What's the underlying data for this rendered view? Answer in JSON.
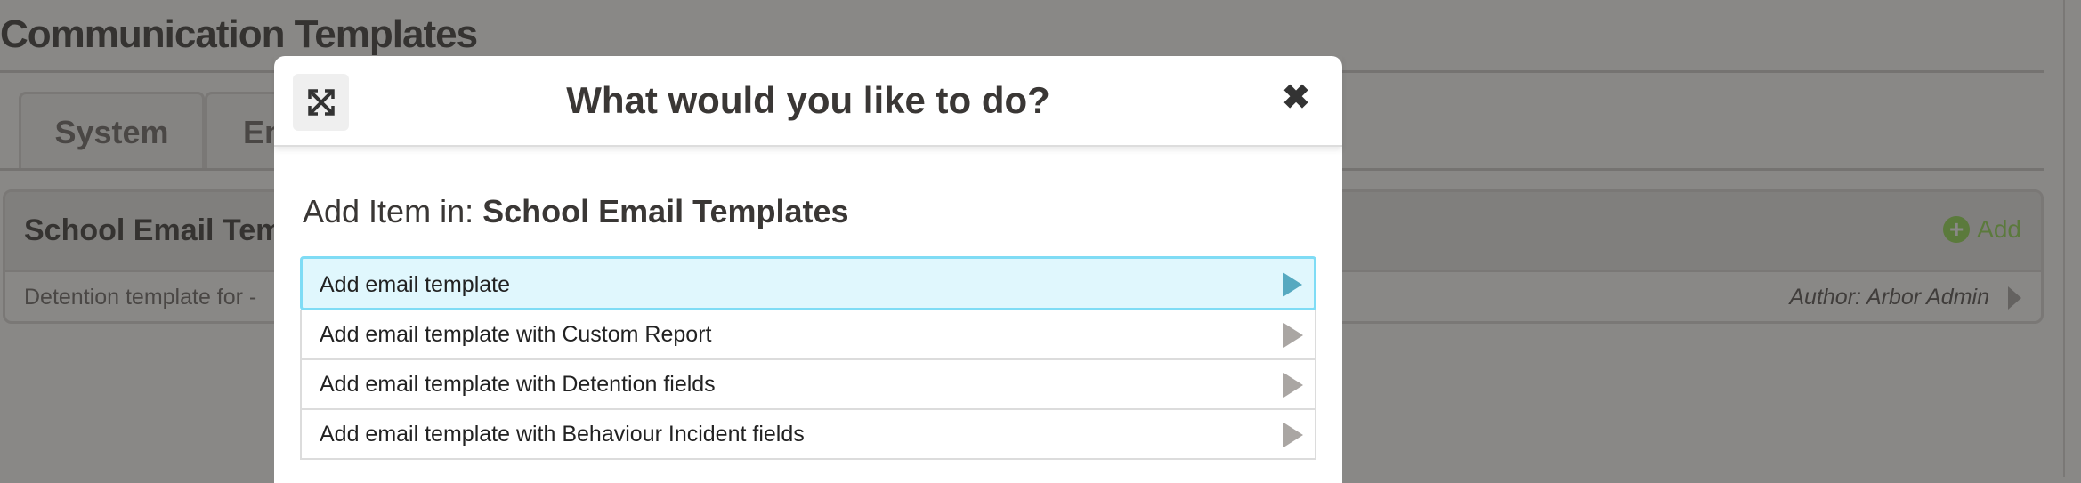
{
  "page": {
    "title": "Communication Templates",
    "tabs": [
      {
        "label": "System"
      },
      {
        "label": "Em"
      }
    ],
    "panel": {
      "title": "School Email Tem",
      "add_label": "Add",
      "row_text": "Detention template for -",
      "row_author": "Author: Arbor Admin"
    }
  },
  "modal": {
    "title": "What would you like to do?",
    "subheading_prefix": "Add Item in: ",
    "subheading_target": "School Email Templates",
    "close_glyph": "✖",
    "options": [
      {
        "label": "Add email template",
        "highlighted": true
      },
      {
        "label": "Add email template with Custom Report"
      },
      {
        "label": "Add email template with Detention fields"
      },
      {
        "label": "Add email template with Behaviour Incident fields"
      }
    ]
  },
  "colors": {
    "highlight_border": "#7fdcf5",
    "highlight_bg": "#e0f7fd",
    "add_green": "#6ea83a",
    "overlay": "#898886"
  }
}
